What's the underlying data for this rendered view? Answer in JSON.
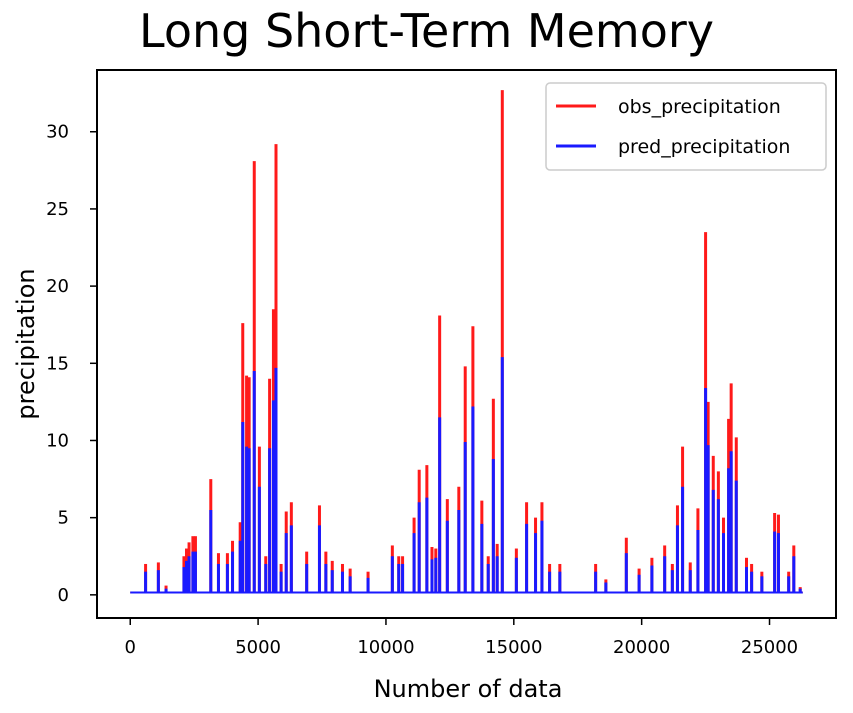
{
  "chart_data": {
    "type": "line",
    "title": "Long Short-Term Memory",
    "xlabel": "Number of data",
    "ylabel": "precipitation",
    "xlim": [
      -1300,
      27600
    ],
    "ylim": [
      -1.5,
      34
    ],
    "x_ticks": [
      0,
      5000,
      10000,
      15000,
      20000,
      25000
    ],
    "y_ticks": [
      0,
      5,
      10,
      15,
      20,
      25,
      30
    ],
    "grid": false,
    "legend_position": "top-right",
    "series": [
      {
        "name": "obs_precipitation",
        "color": "#ff1a1a",
        "spikes": [
          [
            600,
            2.0
          ],
          [
            1100,
            2.1
          ],
          [
            1400,
            0.6
          ],
          [
            2100,
            2.5
          ],
          [
            2200,
            3.0
          ],
          [
            2300,
            3.4
          ],
          [
            2450,
            3.8
          ],
          [
            2550,
            3.8
          ],
          [
            3150,
            7.5
          ],
          [
            3450,
            2.7
          ],
          [
            3800,
            2.7
          ],
          [
            4000,
            3.5
          ],
          [
            4300,
            4.7
          ],
          [
            4400,
            17.6
          ],
          [
            4550,
            14.2
          ],
          [
            4650,
            14.1
          ],
          [
            4850,
            28.1
          ],
          [
            5050,
            9.6
          ],
          [
            5300,
            2.5
          ],
          [
            5450,
            14.0
          ],
          [
            5600,
            18.5
          ],
          [
            5700,
            29.2
          ],
          [
            5900,
            2.0
          ],
          [
            6100,
            5.4
          ],
          [
            6300,
            6.0
          ],
          [
            6900,
            2.8
          ],
          [
            7400,
            5.8
          ],
          [
            7650,
            2.8
          ],
          [
            7900,
            2.2
          ],
          [
            8300,
            2.0
          ],
          [
            8600,
            1.7
          ],
          [
            9300,
            1.5
          ],
          [
            10250,
            3.2
          ],
          [
            10500,
            2.5
          ],
          [
            10650,
            2.5
          ],
          [
            11100,
            5.0
          ],
          [
            11300,
            8.1
          ],
          [
            11600,
            8.4
          ],
          [
            11800,
            3.1
          ],
          [
            11950,
            3.0
          ],
          [
            12100,
            18.1
          ],
          [
            12400,
            6.2
          ],
          [
            12850,
            7.0
          ],
          [
            13100,
            14.8
          ],
          [
            13400,
            17.4
          ],
          [
            13750,
            6.1
          ],
          [
            14000,
            2.5
          ],
          [
            14200,
            12.7
          ],
          [
            14350,
            3.3
          ],
          [
            14550,
            32.7
          ],
          [
            15100,
            3.0
          ],
          [
            15500,
            6.0
          ],
          [
            15850,
            5.0
          ],
          [
            16100,
            6.0
          ],
          [
            16400,
            2.0
          ],
          [
            16800,
            2.0
          ],
          [
            18200,
            2.0
          ],
          [
            18600,
            1.0
          ],
          [
            19400,
            3.7
          ],
          [
            19900,
            1.7
          ],
          [
            20400,
            2.4
          ],
          [
            20900,
            3.2
          ],
          [
            21200,
            2.0
          ],
          [
            21400,
            5.8
          ],
          [
            21600,
            9.6
          ],
          [
            21900,
            2.1
          ],
          [
            22200,
            5.6
          ],
          [
            22500,
            23.5
          ],
          [
            22600,
            12.5
          ],
          [
            22800,
            9.0
          ],
          [
            23000,
            8.0
          ],
          [
            23200,
            5.0
          ],
          [
            23400,
            11.4
          ],
          [
            23500,
            13.7
          ],
          [
            23700,
            10.2
          ],
          [
            24100,
            2.4
          ],
          [
            24300,
            2.0
          ],
          [
            24700,
            1.5
          ],
          [
            25200,
            5.3
          ],
          [
            25350,
            5.2
          ],
          [
            25750,
            1.5
          ],
          [
            25950,
            3.2
          ],
          [
            26200,
            0.5
          ]
        ]
      },
      {
        "name": "pred_precipitation",
        "color": "#1a1aff",
        "spikes": [
          [
            600,
            1.5
          ],
          [
            1100,
            1.6
          ],
          [
            1400,
            0.4
          ],
          [
            2100,
            1.8
          ],
          [
            2200,
            2.2
          ],
          [
            2300,
            2.5
          ],
          [
            2450,
            2.8
          ],
          [
            2550,
            2.8
          ],
          [
            3150,
            5.5
          ],
          [
            3450,
            2.0
          ],
          [
            3800,
            2.0
          ],
          [
            4000,
            2.8
          ],
          [
            4300,
            3.5
          ],
          [
            4400,
            11.2
          ],
          [
            4550,
            9.6
          ],
          [
            4650,
            9.5
          ],
          [
            4850,
            14.5
          ],
          [
            5050,
            7.0
          ],
          [
            5300,
            2.0
          ],
          [
            5450,
            9.5
          ],
          [
            5600,
            12.6
          ],
          [
            5700,
            14.7
          ],
          [
            5900,
            1.5
          ],
          [
            6100,
            4.0
          ],
          [
            6300,
            4.5
          ],
          [
            6900,
            2.0
          ],
          [
            7400,
            4.5
          ],
          [
            7650,
            2.0
          ],
          [
            7900,
            1.6
          ],
          [
            8300,
            1.5
          ],
          [
            8600,
            1.2
          ],
          [
            9300,
            1.1
          ],
          [
            10250,
            2.5
          ],
          [
            10500,
            2.0
          ],
          [
            10650,
            2.0
          ],
          [
            11100,
            4.0
          ],
          [
            11300,
            6.0
          ],
          [
            11600,
            6.3
          ],
          [
            11800,
            2.3
          ],
          [
            11950,
            2.4
          ],
          [
            12100,
            11.5
          ],
          [
            12400,
            4.8
          ],
          [
            12850,
            5.5
          ],
          [
            13100,
            9.9
          ],
          [
            13400,
            12.2
          ],
          [
            13750,
            4.6
          ],
          [
            14000,
            2.0
          ],
          [
            14200,
            8.8
          ],
          [
            14350,
            2.5
          ],
          [
            14550,
            15.4
          ],
          [
            15100,
            2.4
          ],
          [
            15500,
            4.6
          ],
          [
            15850,
            4.0
          ],
          [
            16100,
            4.8
          ],
          [
            16400,
            1.5
          ],
          [
            16800,
            1.5
          ],
          [
            18200,
            1.5
          ],
          [
            18600,
            0.8
          ],
          [
            19400,
            2.7
          ],
          [
            19900,
            1.3
          ],
          [
            20400,
            1.9
          ],
          [
            20900,
            2.5
          ],
          [
            21200,
            1.6
          ],
          [
            21400,
            4.5
          ],
          [
            21600,
            7.0
          ],
          [
            21900,
            1.6
          ],
          [
            22200,
            4.2
          ],
          [
            22500,
            13.4
          ],
          [
            22600,
            9.7
          ],
          [
            22800,
            6.8
          ],
          [
            23000,
            6.2
          ],
          [
            23200,
            4.0
          ],
          [
            23400,
            8.2
          ],
          [
            23500,
            9.3
          ],
          [
            23700,
            7.4
          ],
          [
            24100,
            1.8
          ],
          [
            24300,
            1.5
          ],
          [
            24700,
            1.2
          ],
          [
            25200,
            4.1
          ],
          [
            25350,
            4.0
          ],
          [
            25750,
            1.2
          ],
          [
            25950,
            2.5
          ],
          [
            26200,
            0.4
          ]
        ]
      }
    ],
    "baseline": 0.15,
    "x_end": 26300
  }
}
